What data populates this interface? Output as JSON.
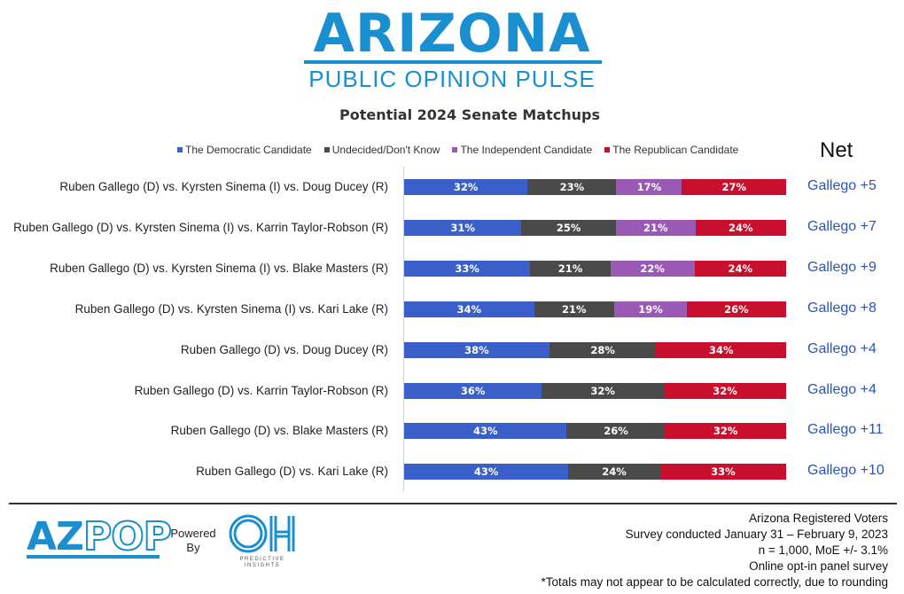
{
  "header": {
    "logo_title": "ARIZONA",
    "logo_subtitle": "PUBLIC OPINION PULSE"
  },
  "colors": {
    "democratic": "#3a5fc8",
    "undecided": "#4a4a4a",
    "independent": "#9b59b6",
    "republican": "#c8102e",
    "net_text": "#2a55b5",
    "brand": "#1a8fd0"
  },
  "chart_data": {
    "type": "bar",
    "orientation": "horizontal-stacked",
    "title": "Potential 2024 Senate Matchups",
    "net_header": "Net",
    "legend_position": "top",
    "series_names": [
      "The Democratic Candidate",
      "Undecided/Don't Know",
      "The Independent Candidate",
      "The Republican Candidate"
    ],
    "rows": [
      {
        "label": "Ruben Gallego (D) vs. Kyrsten Sinema (I) vs. Doug Ducey (R)",
        "values": [
          32,
          23,
          17,
          27
        ],
        "net": "Gallego +5"
      },
      {
        "label": "Ruben Gallego (D) vs. Kyrsten Sinema (I) vs. Karrin Taylor-Robson (R)",
        "values": [
          31,
          25,
          21,
          24
        ],
        "net": "Gallego +7"
      },
      {
        "label": "Ruben Gallego (D) vs. Kyrsten Sinema (I) vs. Blake Masters (R)",
        "values": [
          33,
          21,
          22,
          24
        ],
        "net": "Gallego +9"
      },
      {
        "label": "Ruben Gallego (D) vs. Kyrsten Sinema (I) vs. Kari Lake (R)",
        "values": [
          34,
          21,
          19,
          26
        ],
        "net": "Gallego +8"
      },
      {
        "label": "Ruben Gallego (D) vs. Doug Ducey (R)",
        "values": [
          38,
          28,
          0,
          34
        ],
        "net": "Gallego +4"
      },
      {
        "label": "Ruben Gallego (D) vs. Karrin Taylor-Robson (R)",
        "values": [
          36,
          32,
          0,
          32
        ],
        "net": "Gallego +4"
      },
      {
        "label": "Ruben Gallego (D) vs. Blake Masters (R)",
        "values": [
          43,
          26,
          0,
          32
        ],
        "net": "Gallego +11"
      },
      {
        "label": "Ruben Gallego (D) vs. Kari Lake (R)",
        "values": [
          43,
          24,
          0,
          33
        ],
        "net": "Gallego +10"
      }
    ]
  },
  "footer": {
    "azpop_az": "AZ",
    "azpop_pop": "POP",
    "powered_line1": "Powered",
    "powered_line2": "By",
    "oh_line1": "PREDICTIVE",
    "oh_line2": "INSIGHTS",
    "notes": [
      "Arizona Registered Voters",
      "Survey conducted January 31 – February 9, 2023",
      "n = 1,000, MoE +/- 3.1%",
      "Online opt-in panel survey",
      "*Totals may not appear to be calculated correctly, due to rounding"
    ]
  }
}
